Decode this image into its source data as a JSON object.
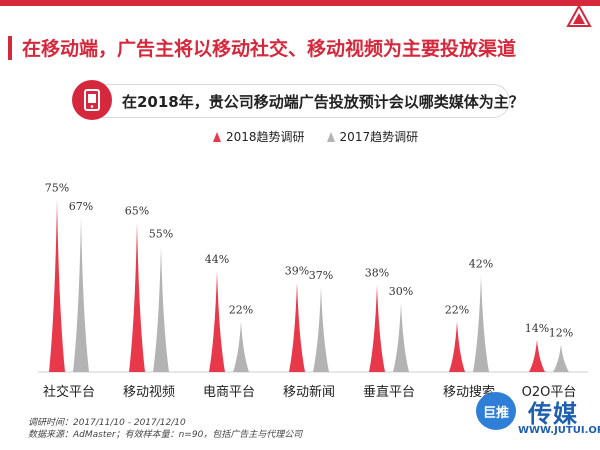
{
  "title": "在移动端，广告主将以移动社交、移动视频为主要投放渠道",
  "question": "在2018年，贵公司移动端广告投放预计会以哪类媒体为主？",
  "colors": {
    "accent": "#d6283c",
    "series_2018": "#e8394b",
    "series_2017": "#b3b3b3"
  },
  "chart_data": {
    "type": "bar",
    "categories": [
      "社交平台",
      "移动视频",
      "电商平台",
      "移动新闻",
      "垂直平台",
      "移动搜索",
      "O2O平台"
    ],
    "series": [
      {
        "name": "2018趋势调研",
        "values": [
          75,
          65,
          44,
          39,
          38,
          22,
          14
        ],
        "labels": [
          "75%",
          "65%",
          "44%",
          "39%",
          "38%",
          "22%",
          "14%"
        ]
      },
      {
        "name": "2017趋势调研",
        "values": [
          67,
          55,
          22,
          37,
          30,
          42,
          12
        ],
        "labels": [
          "67%",
          "55%",
          "22%",
          "37%",
          "30%",
          "42%",
          "12%"
        ]
      }
    ],
    "ylim": [
      0,
      100
    ],
    "grid": false,
    "legend_position": "top"
  },
  "footnotes": [
    "调研时间：2017/11/10 - 2017/12/10",
    "数据来源：AdMaster；有效样本量：n=90，包括广告主与代理公司"
  ],
  "watermark": {
    "logo_text": "巨推",
    "name": "传媒",
    "url": "WWW.JUTUI.ORG"
  }
}
